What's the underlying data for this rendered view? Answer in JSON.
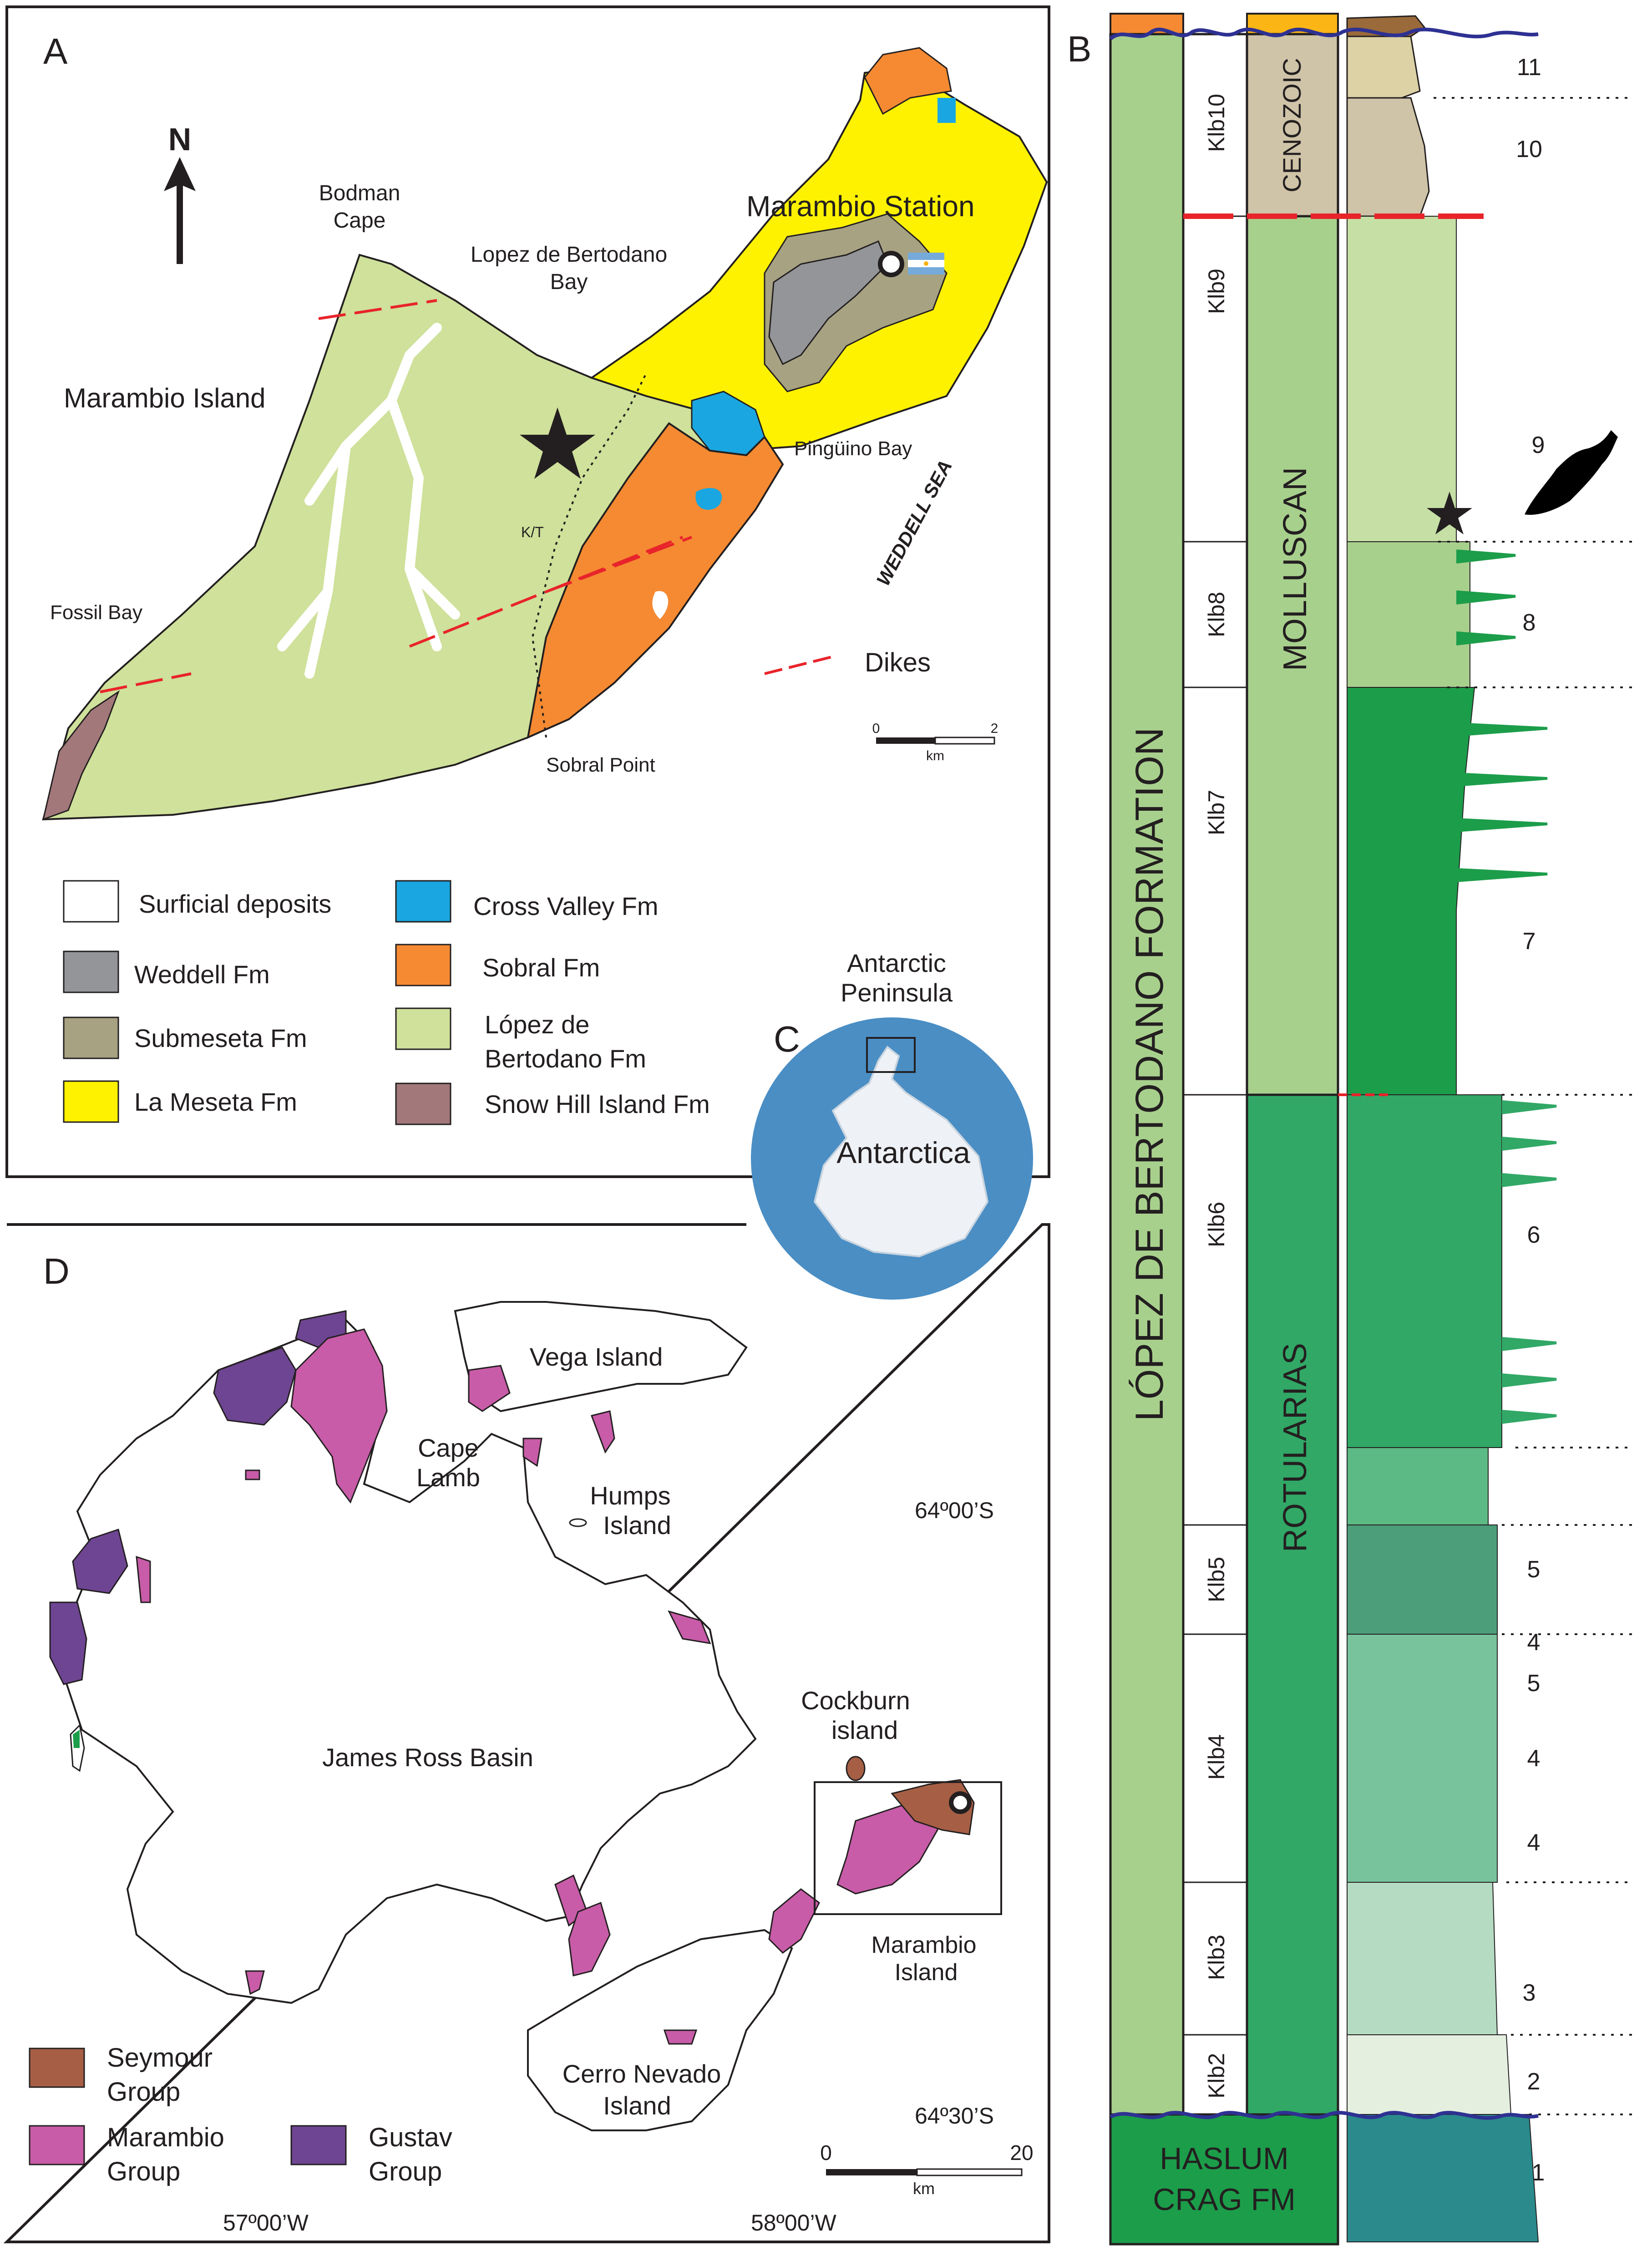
{
  "panelA": {
    "panel_letter": "A",
    "north_label": "N",
    "place_labels": {
      "bodman": "Bodman",
      "cape": "Cape",
      "lopez_bay_1": "Lopez de Bertodano",
      "lopez_bay_2": "Bay",
      "marambio_station": "Marambio Station",
      "marambio_island": "Marambio Island",
      "pinguino_bay": "Pingüino Bay",
      "weddell_sea": "WEDDELL SEA",
      "fossil_bay": "Fossil Bay",
      "sobral_point": "Sobral Point",
      "kt": "K/T",
      "dikes": "Dikes"
    },
    "scale": {
      "start": "0",
      "end": "2",
      "unit": "km"
    },
    "legend": [
      {
        "label": "Surficial deposits",
        "color": "#ffffff"
      },
      {
        "label": "Weddell Fm",
        "color": "#939598"
      },
      {
        "label": "Submeseta Fm",
        "color": "#a7a282"
      },
      {
        "label": "La Meseta Fm",
        "color": "#fff200"
      },
      {
        "label": "Cross Valley Fm",
        "color": "#1aa7e1"
      },
      {
        "label": "Sobral Fm",
        "color": "#f58a32"
      },
      {
        "label_line1": "López de",
        "label_line2": "Bertodano Fm",
        "color": "#cfe19a"
      },
      {
        "label": "Snow Hill Island Fm",
        "color": "#a2787a"
      }
    ]
  },
  "panelB": {
    "panel_letter": "B",
    "formation_label": "LÓPEZ DE BERTODANO FORMATION",
    "haslum_line1": "HASLUM",
    "haslum_line2": "CRAG FM",
    "cenozoic_label": "CENOZOIC",
    "molluscan_label": "MOLLUSCAN",
    "rotularias_label": "ROTULARIAS",
    "units": [
      "Klb10",
      "Klb9",
      "Klb8",
      "Klb7",
      "Klb6",
      "Klb5",
      "Klb4",
      "Klb3",
      "Klb2"
    ],
    "bed_numbers": [
      "11",
      "10",
      "9",
      "8",
      "7",
      "6",
      "5",
      "4",
      "5",
      "4",
      "4",
      "3",
      "2",
      "1"
    ]
  },
  "panelC": {
    "panel_letter": "C",
    "antarctic_peninsula_1": "Antarctic",
    "antarctic_peninsula_2": "Peninsula",
    "antarctica": "Antarctica"
  },
  "panelD": {
    "panel_letter": "D",
    "place_labels": {
      "vega_island": "Vega Island",
      "cape_lamb_1": "Cape",
      "cape_lamb_2": "Lamb",
      "humps_1": "Humps",
      "humps_2": "Island",
      "james_ross_basin": "James Ross Basin",
      "cockburn_1": "Cockburn",
      "cockburn_2": "island",
      "marambio_1": "Marambio",
      "marambio_2": "Island",
      "cerro_nevado_1": "Cerro Nevado",
      "cerro_nevado_2": "Island",
      "lat_1": "64º00’S",
      "lat_2": "64º30’S",
      "lon_1": "57º00’W",
      "lon_2": "58º00’W"
    },
    "scale": {
      "start": "0",
      "end": "20",
      "unit": "km"
    },
    "legend": [
      {
        "label_line1": "Seymour",
        "label_line2": "Group",
        "color": "#a65f44"
      },
      {
        "label_line1": "Marambio",
        "label_line2": "Group",
        "color": "#c85ca8"
      },
      {
        "label_line1": "Gustav",
        "label_line2": "Group",
        "color": "#6e4592"
      }
    ]
  },
  "colors": {
    "lopez": "#cfe19a",
    "sobral": "#f58a32",
    "meseta": "#fff200",
    "submeseta": "#a7a282",
    "weddell": "#939598",
    "crossvalley": "#1aa7e1",
    "snowhill": "#a2787a",
    "dike_red": "#e8242b",
    "klb7_green": "#1c9d4a",
    "rotularias_green": "#31a866",
    "light_green": "#a8d08d"
  }
}
